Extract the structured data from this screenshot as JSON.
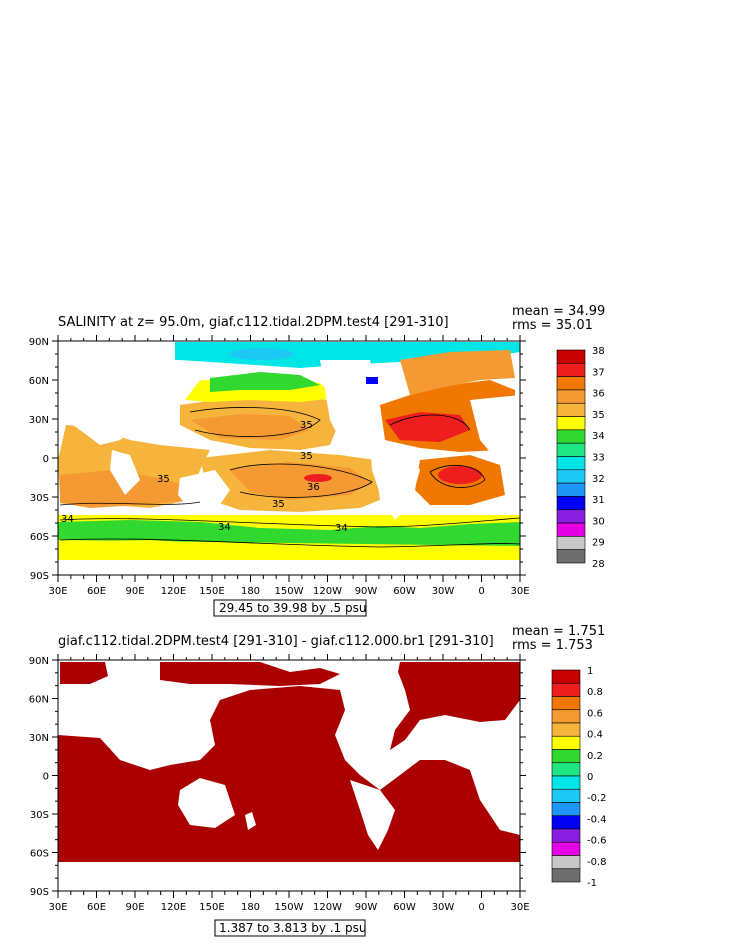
{
  "colors": {
    "ocean_fill": "#aa0000",
    "frame": "#000000",
    "background": "#ffffff"
  },
  "panel1": {
    "title": "SALINITY at z=  95.0m, giaf.c112.tidal.2DPM.test4 [291-310]",
    "mean_text": "mean = 34.99",
    "rms_text": "rms = 35.01",
    "range_text": "29.45 to 39.98 by .5 psu",
    "lat_labels": [
      "90N",
      "60N",
      "30N",
      "0",
      "30S",
      "60S",
      "90S"
    ],
    "lon_labels": [
      "30E",
      "60E",
      "90E",
      "120E",
      "150E",
      "180",
      "150W",
      "120W",
      "90W",
      "60W",
      "30W",
      "0",
      "30E"
    ],
    "colorbar": {
      "labels": [
        "38",
        "37",
        "36",
        "35",
        "34",
        "33",
        "32",
        "31",
        "30",
        "29",
        "28"
      ],
      "colors": [
        "#c80000",
        "#ee1e1e",
        "#f07800",
        "#f59a32",
        "#f7b43c",
        "#ffff00",
        "#30d830",
        "#1ee682",
        "#00e6e6",
        "#1ec8f5",
        "#1e96f5",
        "#0000f5",
        "#8a1ee0",
        "#e600e6",
        "#c8c8c8",
        "#6e6e6e"
      ]
    },
    "contour_labels": [
      "35",
      "35",
      "36",
      "35",
      "35",
      "34",
      "34",
      "34"
    ]
  },
  "panel2": {
    "title": "giaf.c112.tidal.2DPM.test4 [291-310] - giaf.c112.000.br1 [291-310]",
    "mean_text": "mean = 1.751",
    "rms_text": "rms = 1.753",
    "range_text": "1.387 to 3.813 by .1 psu",
    "lat_labels": [
      "90N",
      "60N",
      "30N",
      "0",
      "30S",
      "60S",
      "90S"
    ],
    "lon_labels": [
      "30E",
      "60E",
      "90E",
      "120E",
      "150E",
      "180",
      "150W",
      "120W",
      "90W",
      "60W",
      "30W",
      "0",
      "30E"
    ],
    "colorbar": {
      "labels": [
        "1",
        "0.8",
        "0.6",
        "0.4",
        "0.2",
        "0",
        "-0.2",
        "-0.4",
        "-0.6",
        "-0.8",
        "-1"
      ],
      "colors": [
        "#c80000",
        "#ee1e1e",
        "#f07800",
        "#f59a32",
        "#f7b43c",
        "#ffff00",
        "#30d830",
        "#1ee682",
        "#00e6e6",
        "#1ec8f5",
        "#1e96f5",
        "#0000f5",
        "#8a1ee0",
        "#e600e6",
        "#c8c8c8",
        "#6e6e6e"
      ]
    }
  }
}
